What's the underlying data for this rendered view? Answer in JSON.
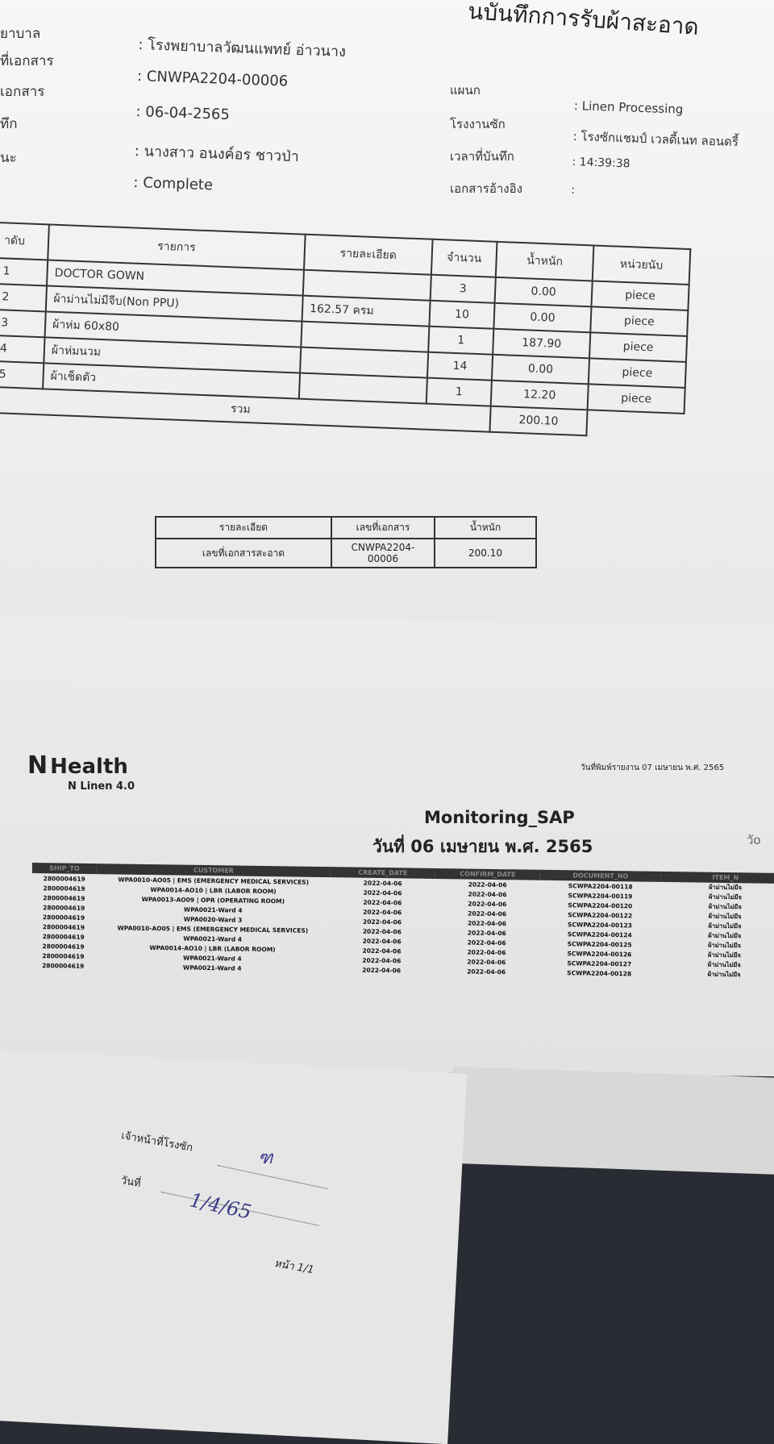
{
  "receipt": {
    "title": "นบันทึกการรับผ้าสะอาด",
    "left_labels": [
      "ยาบาล",
      "ที่เอกสาร",
      "เอกสาร",
      "ทึก",
      "นะ"
    ],
    "left_values": [
      ": โรงพยาบาลวัฒนแพทย์ อ่าวนาง",
      ": CNWPA2204-00006",
      ": 06-04-2565",
      ": นางสาว อนงค์อร ชาวป่า",
      ": Complete"
    ],
    "right_labels": [
      "แผนก",
      "โรงงานซัก",
      "เวลาที่บันทึก",
      "เอกสารอ้างอิง"
    ],
    "right_values": [
      ": Linen Processing",
      ": โรงซักแชมป์ เวลดี้เนท ลอนดรี้",
      ": 14:39:38",
      ":"
    ],
    "table": {
      "headers": [
        "าดับ",
        "รายการ",
        "รายละเอียด",
        "จำนวน",
        "น้ำหนัก",
        "หน่วยนับ"
      ],
      "rows": [
        [
          "1",
          "DOCTOR GOWN",
          "",
          "3",
          "0.00",
          "piece"
        ],
        [
          "2",
          "ผ้าม่านไม่มีจีบ(Non PPU)",
          "162.57 ครม",
          "10",
          "0.00",
          "piece"
        ],
        [
          "3",
          "ผ้าห่ม 60x80",
          "",
          "1",
          "187.90",
          "piece"
        ],
        [
          "4",
          "ผ้าห่มนวม",
          "",
          "14",
          "0.00",
          "piece"
        ],
        [
          "5",
          "ผ้าเช็ดตัว",
          "",
          "1",
          "12.20",
          "piece"
        ]
      ],
      "total_label": "รวม",
      "total_weight": "200.10"
    },
    "summary": {
      "headers": [
        "รายละเอียด",
        "เลขที่เอกสาร",
        "น้ำหนัก"
      ],
      "row": [
        "เลขที่เอกสารสะอาด",
        "CNWPA2204-00006",
        "200.10"
      ]
    }
  },
  "report": {
    "logo_mark": "N",
    "brand": "Health",
    "product": "N Linen 4.0",
    "print_date": "วันที่พิมพ์รายงาน 07 เมษายน พ.ศ. 2565",
    "title": "Monitoring_SAP",
    "date": "วันที่ 06 เมษายน พ.ศ. 2565",
    "corner": "วัo",
    "headers": [
      "SHIP_TO",
      "CUSTOMER",
      "CREATE_DATE",
      "CONFIRM_DATE",
      "DOCUMENT_NO",
      "ITEM_N"
    ],
    "rows": [
      [
        "2800004619",
        "WPA0010-AO05 | EMS (EMERGENCY MEDICAL SERVICES)",
        "2022-04-06",
        "2022-04-06",
        "SCWPA2204-00118",
        "ผ้าม่านไม่มีจ"
      ],
      [
        "2800004619",
        "WPA0014-AO10 | LBR (LABOR ROOM)",
        "2022-04-06",
        "2022-04-06",
        "SCWPA2204-00119",
        "ผ้าม่านไม่มีจ"
      ],
      [
        "2800004619",
        "WPA0013-AO09 | OPR (OPERATING ROOM)",
        "2022-04-06",
        "2022-04-06",
        "SCWPA2204-00120",
        "ผ้าม่านไม่มีจ"
      ],
      [
        "2800004619",
        "WPA0021-Ward 4",
        "2022-04-06",
        "2022-04-06",
        "SCWPA2204-00122",
        "ผ้าม่านไม่มีจ"
      ],
      [
        "2800004619",
        "WPA0020-Ward 3",
        "2022-04-06",
        "2022-04-06",
        "SCWPA2204-00123",
        "ผ้าม่านไม่มีจ"
      ],
      [
        "2800004619",
        "WPA0010-AO05 | EMS (EMERGENCY MEDICAL SERVICES)",
        "2022-04-06",
        "2022-04-06",
        "SCWPA2204-00124",
        "ผ้าม่านไม่มีจ"
      ],
      [
        "2800004619",
        "WPA0021-Ward 4",
        "2022-04-06",
        "2022-04-06",
        "SCWPA2204-00125",
        "ผ้าม่านไม่มีจ"
      ],
      [
        "2800004619",
        "WPA0014-AO10 | LBR (LABOR ROOM)",
        "2022-04-06",
        "2022-04-06",
        "SCWPA2204-00126",
        "ผ้าม่านไม่มีจ"
      ],
      [
        "2800004619",
        "WPA0021-Ward 4",
        "2022-04-06",
        "2022-04-06",
        "SCWPA2204-00127",
        "ผ้าม่านไม่มีจ"
      ],
      [
        "2800004619",
        "WPA0021-Ward 4",
        "2022-04-06",
        "2022-04-06",
        "SCWPA2204-00128",
        "ผ้าม่านไม่มีจ"
      ]
    ]
  },
  "signoff": {
    "staff_label": "เจ้าหน้าที่โรงซัก",
    "date_label": "วันที่",
    "signature": "ฑ",
    "date_value": "1/4/65",
    "page": "หน้า 1/1"
  }
}
